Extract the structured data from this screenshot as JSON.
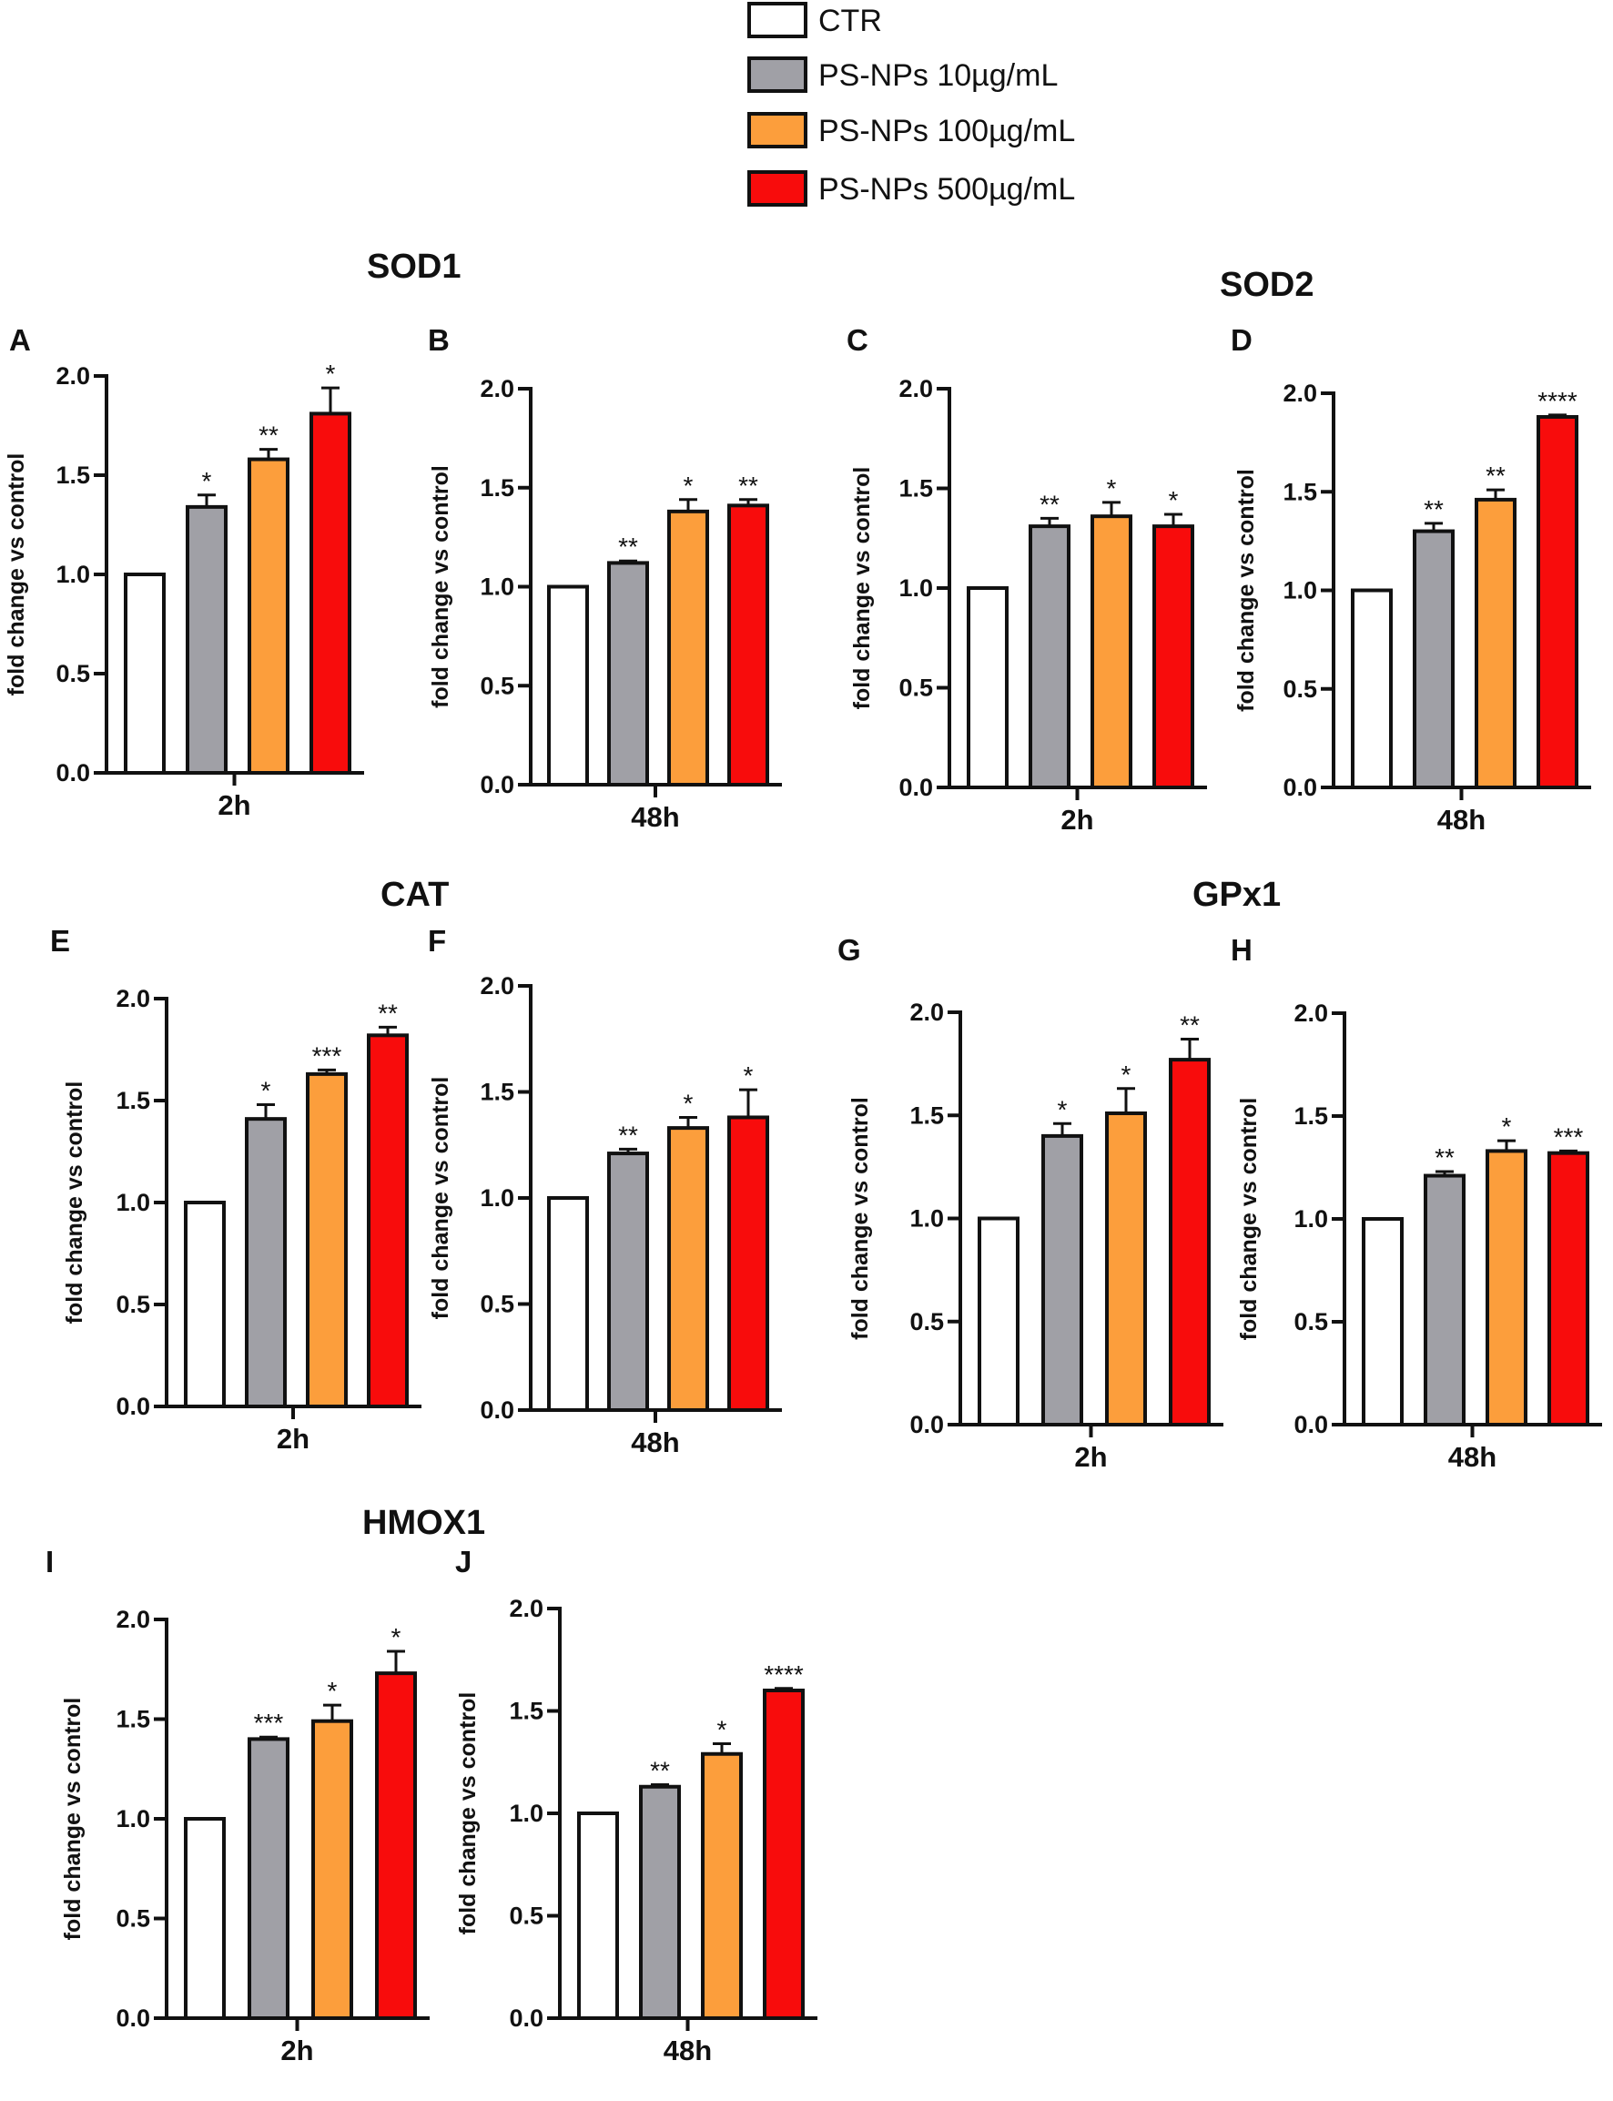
{
  "legend": [
    {
      "label": "CTR",
      "color": "#ffffff"
    },
    {
      "label": "PS-NPs 10µg/mL",
      "color": "#a0a0a6"
    },
    {
      "label": "PS-NPs 100µg/mL",
      "color": "#fc9e3c"
    },
    {
      "label": "PS-NPs 500µg/mL",
      "color": "#f80c0c"
    }
  ],
  "gene_titles": [
    "SOD1",
    "SOD2",
    "CAT",
    "GPx1",
    "HMOX1"
  ],
  "chart_data": [
    {
      "panel": "A",
      "gene": "SOD1",
      "type": "bar",
      "xlabel": "2h",
      "ylabel": "fold change vs control",
      "ylim": [
        0,
        2.0
      ],
      "yticks": [
        "0.0",
        "0.5",
        "1.0",
        "1.5",
        "2.0"
      ],
      "categories": [
        "CTR",
        "PS-NPs 10µg/mL",
        "PS-NPs 100µg/mL",
        "PS-NPs 500µg/mL"
      ],
      "values": [
        1.0,
        1.34,
        1.58,
        1.81
      ],
      "errors": [
        0,
        0.06,
        0.05,
        0.13
      ],
      "significance": [
        "",
        "*",
        "**",
        "*"
      ]
    },
    {
      "panel": "B",
      "gene": "SOD1",
      "type": "bar",
      "xlabel": "48h",
      "ylabel": "fold change vs control",
      "ylim": [
        0,
        2.0
      ],
      "yticks": [
        "0.0",
        "0.5",
        "1.0",
        "1.5",
        "2.0"
      ],
      "categories": [
        "CTR",
        "PS-NPs 10µg/mL",
        "PS-NPs 100µg/mL",
        "PS-NPs 500µg/mL"
      ],
      "values": [
        1.0,
        1.12,
        1.38,
        1.41
      ],
      "errors": [
        0,
        0.01,
        0.06,
        0.03
      ],
      "significance": [
        "",
        "**",
        "*",
        "**"
      ]
    },
    {
      "panel": "C",
      "gene": "SOD2",
      "type": "bar",
      "xlabel": "2h",
      "ylabel": "fold change vs control",
      "ylim": [
        0,
        2.0
      ],
      "yticks": [
        "0.0",
        "0.5",
        "1.0",
        "1.5",
        "2.0"
      ],
      "categories": [
        "CTR",
        "PS-NPs 10µg/mL",
        "PS-NPs 100µg/mL",
        "PS-NPs 500µg/mL"
      ],
      "values": [
        1.0,
        1.31,
        1.36,
        1.31
      ],
      "errors": [
        0,
        0.04,
        0.07,
        0.06
      ],
      "significance": [
        "",
        "**",
        "*",
        "*"
      ]
    },
    {
      "panel": "D",
      "gene": "SOD2",
      "type": "bar",
      "xlabel": "48h",
      "ylabel": "fold change vs control",
      "ylim": [
        0,
        2.0
      ],
      "yticks": [
        "0.0",
        "0.5",
        "1.0",
        "1.5",
        "2.0"
      ],
      "categories": [
        "CTR",
        "PS-NPs 10µg/mL",
        "PS-NPs 100µg/mL",
        "PS-NPs 500µg/mL"
      ],
      "values": [
        1.0,
        1.3,
        1.46,
        1.88
      ],
      "errors": [
        0,
        0.04,
        0.05,
        0.01
      ],
      "significance": [
        "",
        "**",
        "**",
        "****"
      ]
    },
    {
      "panel": "E",
      "gene": "CAT",
      "type": "bar",
      "xlabel": "2h",
      "ylabel": "fold change vs control",
      "ylim": [
        0,
        2.0
      ],
      "yticks": [
        "0.0",
        "0.5",
        "1.0",
        "1.5",
        "2.0"
      ],
      "categories": [
        "CTR",
        "PS-NPs 10µg/mL",
        "PS-NPs 100µg/mL",
        "PS-NPs 500µg/mL"
      ],
      "values": [
        1.0,
        1.41,
        1.63,
        1.82
      ],
      "errors": [
        0,
        0.07,
        0.02,
        0.04
      ],
      "significance": [
        "",
        "*",
        "***",
        "**"
      ]
    },
    {
      "panel": "F",
      "gene": "CAT",
      "type": "bar",
      "xlabel": "48h",
      "ylabel": "fold change vs control",
      "ylim": [
        0,
        2.0
      ],
      "yticks": [
        "0.0",
        "0.5",
        "1.0",
        "1.5",
        "2.0"
      ],
      "categories": [
        "CTR",
        "PS-NPs 10µg/mL",
        "PS-NPs 100µg/mL",
        "PS-NPs 500µg/mL"
      ],
      "values": [
        1.0,
        1.21,
        1.33,
        1.38
      ],
      "errors": [
        0,
        0.02,
        0.05,
        0.13
      ],
      "significance": [
        "",
        "**",
        "*",
        "*"
      ]
    },
    {
      "panel": "G",
      "gene": "GPx1",
      "type": "bar",
      "xlabel": "2h",
      "ylabel": "fold change vs control",
      "ylim": [
        0,
        2.0
      ],
      "yticks": [
        "0.0",
        "0.5",
        "1.0",
        "1.5",
        "2.0"
      ],
      "categories": [
        "CTR",
        "PS-NPs 10µg/mL",
        "PS-NPs 100µg/mL",
        "PS-NPs 500µg/mL"
      ],
      "values": [
        1.0,
        1.4,
        1.51,
        1.77
      ],
      "errors": [
        0,
        0.06,
        0.12,
        0.1
      ],
      "significance": [
        "",
        "*",
        "*",
        "**"
      ]
    },
    {
      "panel": "H",
      "gene": "GPx1",
      "type": "bar",
      "xlabel": "48h",
      "ylabel": "fold change vs control",
      "ylim": [
        0,
        2.0
      ],
      "yticks": [
        "0.0",
        "0.5",
        "1.0",
        "1.5",
        "2.0"
      ],
      "categories": [
        "CTR",
        "PS-NPs 10µg/mL",
        "PS-NPs 100µg/mL",
        "PS-NPs 500µg/mL"
      ],
      "values": [
        1.0,
        1.21,
        1.33,
        1.32
      ],
      "errors": [
        0,
        0.02,
        0.05,
        0.01
      ],
      "significance": [
        "",
        "**",
        "*",
        "***"
      ]
    },
    {
      "panel": "I",
      "gene": "HMOX1",
      "type": "bar",
      "xlabel": "2h",
      "ylabel": "fold change vs control",
      "ylim": [
        0,
        2.0
      ],
      "yticks": [
        "0.0",
        "0.5",
        "1.0",
        "1.5",
        "2.0"
      ],
      "categories": [
        "CTR",
        "PS-NPs 10µg/mL",
        "PS-NPs 100µg/mL",
        "PS-NPs 500µg/mL"
      ],
      "values": [
        1.0,
        1.4,
        1.49,
        1.73
      ],
      "errors": [
        0,
        0.01,
        0.08,
        0.11
      ],
      "significance": [
        "",
        "***",
        "*",
        "*"
      ]
    },
    {
      "panel": "J",
      "gene": "HMOX1",
      "type": "bar",
      "xlabel": "48h",
      "ylabel": "fold change vs control",
      "ylim": [
        0,
        2.0
      ],
      "yticks": [
        "0.0",
        "0.5",
        "1.0",
        "1.5",
        "2.0"
      ],
      "categories": [
        "CTR",
        "PS-NPs 10µg/mL",
        "PS-NPs 100µg/mL",
        "PS-NPs 500µg/mL"
      ],
      "values": [
        1.0,
        1.13,
        1.29,
        1.6
      ],
      "errors": [
        0,
        0.01,
        0.05,
        0.01
      ],
      "significance": [
        "",
        "**",
        "*",
        "****"
      ]
    }
  ]
}
